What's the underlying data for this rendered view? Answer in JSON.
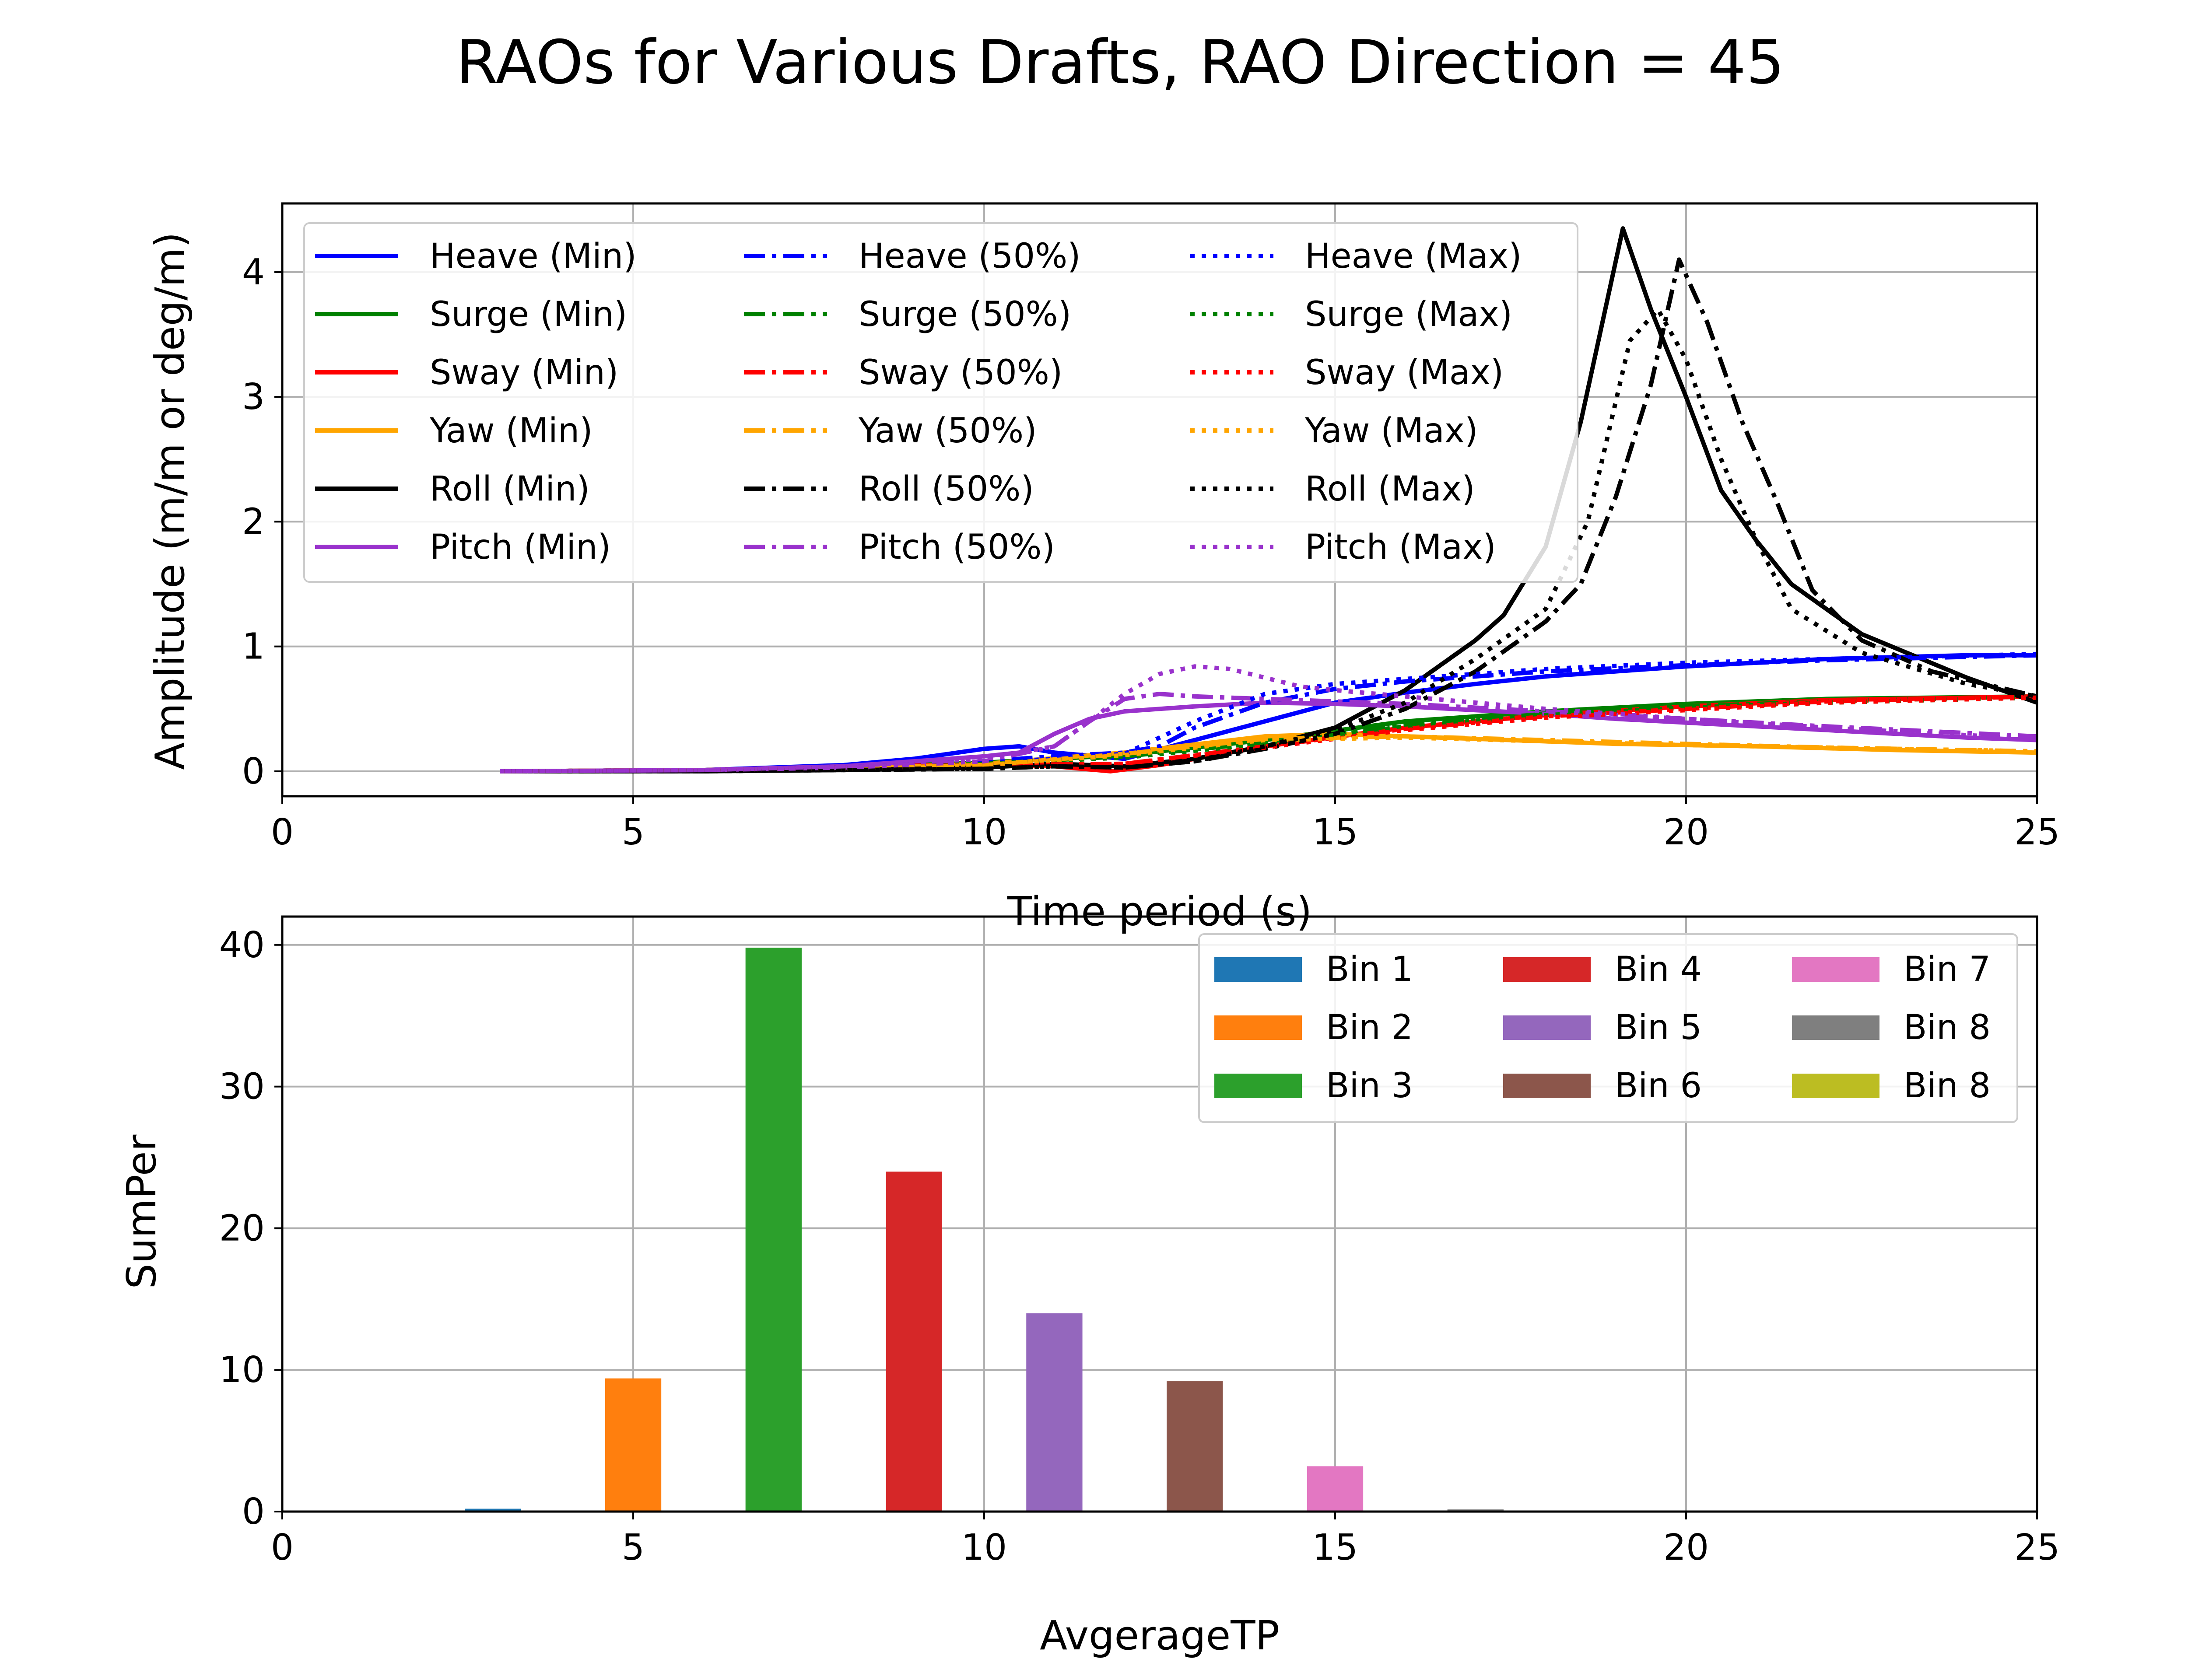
{
  "figure": {
    "title": "RAOs for Various Drafts, RAO Direction = 45"
  },
  "chart_data": [
    {
      "type": "line",
      "xlabel": "Time period (s)",
      "ylabel": "Amplitude (m/m or deg/m)",
      "xlim": [
        0,
        25
      ],
      "ylim": [
        -0.2,
        4.55
      ],
      "xticks": [
        "0",
        "5",
        "10",
        "15",
        "20",
        "25"
      ],
      "yticks": [
        "0",
        "1",
        "2",
        "3",
        "4"
      ],
      "grid": true,
      "legend": {
        "placement": "top-left",
        "columns": 3
      },
      "series": [
        {
          "name": "Heave (Min)",
          "color": "#0000ff",
          "style": "solid",
          "x": [
            3.1,
            6,
            8,
            9,
            10,
            10.5,
            11,
            12,
            13,
            14,
            15,
            16,
            17,
            18,
            19,
            20,
            22,
            24,
            25
          ],
          "y": [
            0,
            0.01,
            0.05,
            0.1,
            0.18,
            0.2,
            0.15,
            0.1,
            0.25,
            0.4,
            0.55,
            0.63,
            0.7,
            0.76,
            0.8,
            0.84,
            0.9,
            0.93,
            0.93
          ]
        },
        {
          "name": "Surge (Min)",
          "color": "#008000",
          "style": "solid",
          "x": [
            3.1,
            6,
            8,
            10,
            12,
            14,
            16,
            18,
            20,
            22,
            25
          ],
          "y": [
            0,
            0.01,
            0.03,
            0.07,
            0.13,
            0.25,
            0.4,
            0.48,
            0.54,
            0.58,
            0.6
          ]
        },
        {
          "name": "Sway (Min)",
          "color": "#ff0000",
          "style": "solid",
          "x": [
            3.1,
            6,
            8,
            10,
            11,
            11.8,
            12.5,
            14,
            16,
            18,
            20,
            22,
            25
          ],
          "y": [
            0,
            0.01,
            0.03,
            0.06,
            0.04,
            0.0,
            0.05,
            0.2,
            0.35,
            0.45,
            0.52,
            0.57,
            0.6
          ]
        },
        {
          "name": "Yaw (Min)",
          "color": "#ffa500",
          "style": "solid",
          "x": [
            3.1,
            6,
            8,
            10,
            12,
            14,
            15,
            17,
            19,
            21,
            23,
            25
          ],
          "y": [
            0,
            0.01,
            0.02,
            0.06,
            0.15,
            0.28,
            0.3,
            0.26,
            0.22,
            0.2,
            0.17,
            0.15
          ]
        },
        {
          "name": "Roll (Min)",
          "color": "#000000",
          "style": "solid",
          "x": [
            3.1,
            6,
            8,
            10,
            11,
            12,
            13,
            14,
            15,
            16,
            17,
            17.4,
            18,
            18.5,
            19.1,
            19.5,
            20,
            20.5,
            21,
            21.5,
            22.5,
            24,
            25
          ],
          "y": [
            0,
            0.0,
            0.01,
            0.03,
            0.06,
            0.04,
            0.1,
            0.2,
            0.35,
            0.65,
            1.05,
            1.25,
            1.8,
            2.8,
            4.35,
            3.7,
            3.0,
            2.25,
            1.85,
            1.5,
            1.1,
            0.75,
            0.55
          ]
        },
        {
          "name": "Pitch (Min)",
          "color": "#9932cc",
          "style": "solid",
          "x": [
            3.1,
            6,
            8,
            9,
            10,
            10.5,
            11,
            11.5,
            12,
            13,
            14,
            15,
            16,
            17,
            18,
            19,
            20,
            21,
            22,
            23,
            24,
            25
          ],
          "y": [
            0,
            0.01,
            0.04,
            0.08,
            0.12,
            0.15,
            0.3,
            0.42,
            0.48,
            0.52,
            0.55,
            0.54,
            0.52,
            0.49,
            0.46,
            0.42,
            0.39,
            0.36,
            0.33,
            0.3,
            0.27,
            0.25
          ]
        },
        {
          "name": "Heave (50%)",
          "color": "#0000ff",
          "style": "dashdot",
          "x": [
            3.1,
            6,
            8,
            10,
            11,
            12,
            12.5,
            13,
            14,
            15,
            16,
            17,
            18,
            20,
            22,
            25
          ],
          "y": [
            0,
            0.01,
            0.03,
            0.08,
            0.12,
            0.15,
            0.2,
            0.35,
            0.55,
            0.66,
            0.72,
            0.76,
            0.8,
            0.85,
            0.89,
            0.93
          ]
        },
        {
          "name": "Surge (50%)",
          "color": "#008000",
          "style": "dashdot",
          "x": [
            3.1,
            6,
            8,
            10,
            12,
            14,
            16,
            18,
            20,
            22,
            25
          ],
          "y": [
            0,
            0.01,
            0.03,
            0.06,
            0.12,
            0.23,
            0.37,
            0.46,
            0.52,
            0.56,
            0.6
          ]
        },
        {
          "name": "Sway (50%)",
          "color": "#ff0000",
          "style": "dashdot",
          "x": [
            3.1,
            6,
            8,
            10,
            12,
            14,
            16,
            18,
            20,
            22,
            25
          ],
          "y": [
            0,
            0.01,
            0.03,
            0.05,
            0.06,
            0.2,
            0.34,
            0.44,
            0.5,
            0.56,
            0.6
          ]
        },
        {
          "name": "Yaw (50%)",
          "color": "#ffa500",
          "style": "dashdot",
          "x": [
            3.1,
            6,
            8,
            10,
            12,
            14,
            16,
            18,
            20,
            22,
            25
          ],
          "y": [
            0,
            0.01,
            0.02,
            0.05,
            0.14,
            0.26,
            0.28,
            0.25,
            0.22,
            0.19,
            0.16
          ]
        },
        {
          "name": "Roll (50%)",
          "color": "#000000",
          "style": "dashdot",
          "x": [
            3.1,
            6,
            8,
            10,
            11,
            12,
            13,
            14,
            15,
            16,
            17,
            18,
            18.5,
            19,
            19.5,
            19.9,
            20.3,
            20.8,
            21.3,
            21.8,
            22.5,
            23.5,
            25
          ],
          "y": [
            0,
            0.0,
            0.01,
            0.02,
            0.04,
            0.03,
            0.08,
            0.18,
            0.3,
            0.5,
            0.8,
            1.2,
            1.5,
            2.2,
            3.1,
            4.1,
            3.6,
            2.8,
            2.15,
            1.45,
            1.05,
            0.8,
            0.6
          ]
        },
        {
          "name": "Pitch (50%)",
          "color": "#9932cc",
          "style": "dashdot",
          "x": [
            3.1,
            6,
            8,
            10,
            11,
            11.5,
            12,
            12.5,
            13,
            14,
            15,
            16,
            18,
            20,
            22,
            25
          ],
          "y": [
            0,
            0.01,
            0.03,
            0.08,
            0.2,
            0.4,
            0.58,
            0.62,
            0.6,
            0.58,
            0.56,
            0.54,
            0.48,
            0.42,
            0.36,
            0.28
          ]
        },
        {
          "name": "Heave (Max)",
          "color": "#0000ff",
          "style": "dotted",
          "x": [
            3.1,
            6,
            8,
            10,
            11,
            12,
            13,
            14,
            15,
            16,
            17,
            18,
            20,
            22,
            25
          ],
          "y": [
            0,
            0.01,
            0.03,
            0.07,
            0.1,
            0.14,
            0.4,
            0.62,
            0.7,
            0.74,
            0.78,
            0.82,
            0.87,
            0.9,
            0.94
          ]
        },
        {
          "name": "Surge (Max)",
          "color": "#008000",
          "style": "dotted",
          "x": [
            3.1,
            6,
            8,
            10,
            12,
            14,
            16,
            18,
            20,
            22,
            25
          ],
          "y": [
            0,
            0.01,
            0.03,
            0.06,
            0.11,
            0.22,
            0.36,
            0.45,
            0.51,
            0.55,
            0.59
          ]
        },
        {
          "name": "Sway (Max)",
          "color": "#ff0000",
          "style": "dotted",
          "x": [
            3.1,
            6,
            8,
            10,
            12,
            14,
            16,
            18,
            20,
            22,
            25
          ],
          "y": [
            0,
            0.01,
            0.03,
            0.05,
            0.06,
            0.19,
            0.33,
            0.43,
            0.49,
            0.55,
            0.59
          ]
        },
        {
          "name": "Yaw (Max)",
          "color": "#ffa500",
          "style": "dotted",
          "x": [
            3.1,
            6,
            8,
            10,
            12,
            14,
            16,
            18,
            20,
            22,
            25
          ],
          "y": [
            0,
            0.01,
            0.02,
            0.05,
            0.13,
            0.25,
            0.27,
            0.24,
            0.21,
            0.19,
            0.16
          ]
        },
        {
          "name": "Roll (Max)",
          "color": "#000000",
          "style": "dotted",
          "x": [
            3.1,
            6,
            8,
            10,
            11,
            12,
            13,
            14,
            15,
            16,
            17,
            18,
            18.6,
            19.2,
            19.6,
            20,
            20.5,
            21,
            21.5,
            22.5,
            24,
            25
          ],
          "y": [
            0,
            0.0,
            0.01,
            0.02,
            0.04,
            0.03,
            0.08,
            0.2,
            0.33,
            0.55,
            0.9,
            1.3,
            2.0,
            3.45,
            3.7,
            3.3,
            2.5,
            1.85,
            1.3,
            0.95,
            0.7,
            0.6
          ]
        },
        {
          "name": "Pitch (Max)",
          "color": "#9932cc",
          "style": "dotted",
          "x": [
            3.1,
            6,
            8,
            10,
            11,
            11.5,
            12,
            12.5,
            13,
            13.5,
            14,
            14.5,
            15,
            16,
            18,
            20,
            22,
            25
          ],
          "y": [
            0,
            0.01,
            0.04,
            0.1,
            0.2,
            0.4,
            0.62,
            0.78,
            0.84,
            0.82,
            0.75,
            0.68,
            0.65,
            0.6,
            0.5,
            0.42,
            0.35,
            0.26
          ]
        }
      ]
    },
    {
      "type": "bar",
      "xlabel": "AvgerageTP",
      "ylabel": "SumPer",
      "xlim": [
        0,
        25
      ],
      "ylim": [
        0,
        42
      ],
      "xticks": [
        "0",
        "5",
        "10",
        "15",
        "20",
        "25"
      ],
      "yticks": [
        "0",
        "10",
        "20",
        "30",
        "40"
      ],
      "grid": true,
      "bar_width": 0.8,
      "legend": {
        "placement": "top-right",
        "columns": 3
      },
      "series": [
        {
          "name": "Bin 1",
          "color": "#1f77b4",
          "x": 3,
          "value": 0.2
        },
        {
          "name": "Bin 2",
          "color": "#ff7f0e",
          "x": 5,
          "value": 9.4
        },
        {
          "name": "Bin 3",
          "color": "#2ca02c",
          "x": 7,
          "value": 39.8
        },
        {
          "name": "Bin 4",
          "color": "#d62728",
          "x": 9,
          "value": 24.0
        },
        {
          "name": "Bin 5",
          "color": "#9467bd",
          "x": 11,
          "value": 14.0
        },
        {
          "name": "Bin 6",
          "color": "#8c564b",
          "x": 13,
          "value": 9.2
        },
        {
          "name": "Bin 7",
          "color": "#e377c2",
          "x": 15,
          "value": 3.2
        },
        {
          "name": "Bin 8",
          "color": "#7f7f7f",
          "x": 17,
          "value": 0.15
        },
        {
          "name": "Bin 8",
          "color": "#bcbd22",
          "x": 19,
          "value": 0
        }
      ]
    }
  ]
}
